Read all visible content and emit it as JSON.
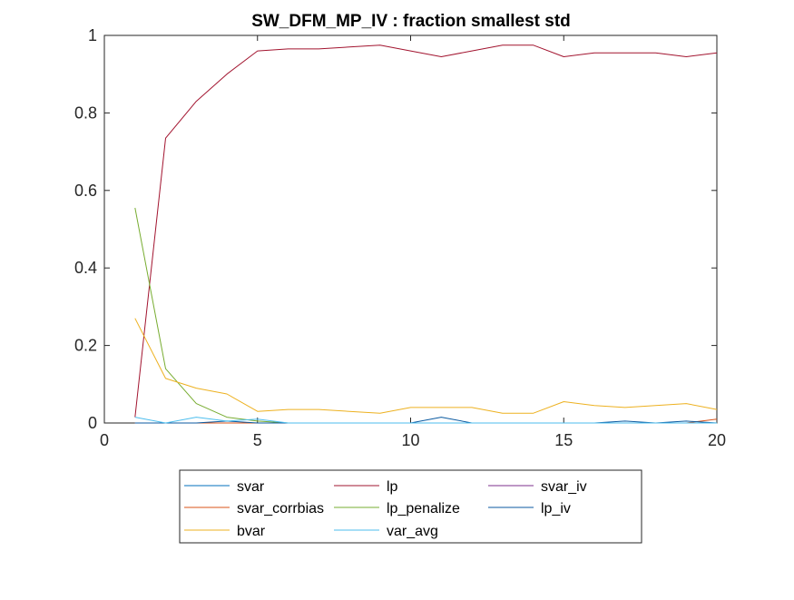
{
  "chart_data": {
    "type": "line",
    "title": "SW_DFM_MP_IV : fraction smallest std",
    "xlabel": "",
    "ylabel": "",
    "xlim": [
      0,
      20
    ],
    "ylim": [
      0,
      1
    ],
    "xticks": [
      "0",
      "5",
      "10",
      "15",
      "20"
    ],
    "yticks": [
      "0",
      "0.2",
      "0.4",
      "0.6",
      "0.8",
      "1"
    ],
    "grid": false,
    "legend_position": "bottom",
    "x": [
      1,
      2,
      3,
      4,
      5,
      6,
      7,
      8,
      9,
      10,
      11,
      12,
      13,
      14,
      15,
      16,
      17,
      18,
      19,
      20
    ],
    "series": [
      {
        "name": "svar",
        "color": "#0072BD",
        "values": [
          0,
          0,
          0,
          0,
          0,
          0,
          0,
          0,
          0,
          0,
          0,
          0,
          0,
          0,
          0,
          0,
          0,
          0,
          0,
          0
        ]
      },
      {
        "name": "lp",
        "color": "#A2142F",
        "values": [
          0.015,
          0.735,
          0.83,
          0.9,
          0.96,
          0.965,
          0.965,
          0.97,
          0.975,
          0.96,
          0.945,
          0.96,
          0.975,
          0.975,
          0.945,
          0.955,
          0.955,
          0.955,
          0.945,
          0.955
        ]
      },
      {
        "name": "svar_iv",
        "color": "#7E2F8E",
        "values": [
          0,
          0,
          0,
          0,
          0,
          0,
          0,
          0,
          0,
          0,
          0,
          0,
          0,
          0,
          0,
          0,
          0,
          0,
          0,
          0
        ]
      },
      {
        "name": "svar_corrbias",
        "color": "#D95319",
        "values": [
          0,
          0,
          0,
          0,
          0,
          0,
          0,
          0,
          0,
          0,
          0,
          0,
          0,
          0,
          0,
          0,
          0,
          0,
          0,
          0.01
        ]
      },
      {
        "name": "lp_penalize",
        "color": "#77AC30",
        "values": [
          0.555,
          0.14,
          0.05,
          0.015,
          0.005,
          0,
          0,
          0,
          0,
          0,
          0,
          0,
          0,
          0,
          0,
          0,
          0,
          0,
          0,
          0
        ]
      },
      {
        "name": "lp_iv",
        "color": "#0B5AA0",
        "values": [
          0,
          0,
          0,
          0.005,
          0,
          0,
          0,
          0,
          0,
          0,
          0.015,
          0,
          0,
          0,
          0,
          0,
          0.005,
          0,
          0.005,
          0
        ]
      },
      {
        "name": "bvar",
        "color": "#EDB120",
        "values": [
          0.27,
          0.115,
          0.09,
          0.075,
          0.03,
          0.035,
          0.035,
          0.03,
          0.025,
          0.04,
          0.04,
          0.04,
          0.025,
          0.025,
          0.055,
          0.045,
          0.04,
          0.045,
          0.05,
          0.035
        ]
      },
      {
        "name": "var_avg",
        "color": "#4DBEEE",
        "values": [
          0.015,
          0,
          0.015,
          0.005,
          0.01,
          0,
          0,
          0,
          0,
          0,
          0,
          0,
          0,
          0,
          0,
          0,
          0,
          0,
          0,
          0
        ]
      }
    ]
  }
}
